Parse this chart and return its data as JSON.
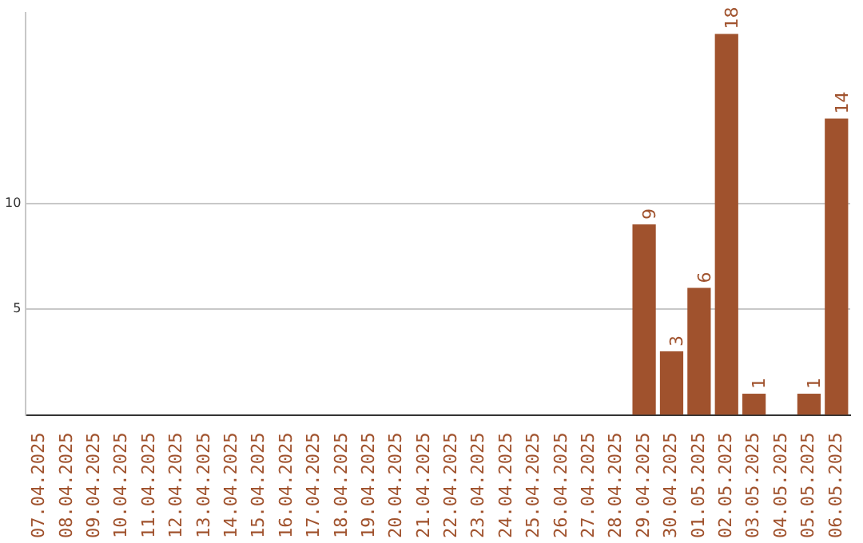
{
  "chart_data": {
    "type": "bar",
    "categories": [
      "07.04.2025",
      "08.04.2025",
      "09.04.2025",
      "10.04.2025",
      "11.04.2025",
      "12.04.2025",
      "13.04.2025",
      "14.04.2025",
      "15.04.2025",
      "16.04.2025",
      "17.04.2025",
      "18.04.2025",
      "19.04.2025",
      "20.04.2025",
      "21.04.2025",
      "22.04.2025",
      "23.04.2025",
      "24.04.2025",
      "25.04.2025",
      "26.04.2025",
      "27.04.2025",
      "28.04.2025",
      "29.04.2025",
      "30.04.2025",
      "01.05.2025",
      "02.05.2025",
      "03.05.2025",
      "04.05.2025",
      "05.05.2025",
      "06.05.2025"
    ],
    "values": [
      0,
      0,
      0,
      0,
      0,
      0,
      0,
      0,
      0,
      0,
      0,
      0,
      0,
      0,
      0,
      0,
      0,
      0,
      0,
      0,
      0,
      0,
      9,
      3,
      6,
      18,
      1,
      0,
      1,
      14
    ],
    "value_labels": [
      null,
      null,
      null,
      null,
      null,
      null,
      null,
      null,
      null,
      null,
      null,
      null,
      null,
      null,
      null,
      null,
      null,
      null,
      null,
      null,
      null,
      null,
      "9",
      "3",
      "6",
      "18",
      "1",
      null,
      "1",
      "14"
    ],
    "color": "#a0522d",
    "ylim": [
      0,
      19
    ],
    "yticks": [
      5,
      10
    ],
    "grid": "y",
    "legend": false
  }
}
